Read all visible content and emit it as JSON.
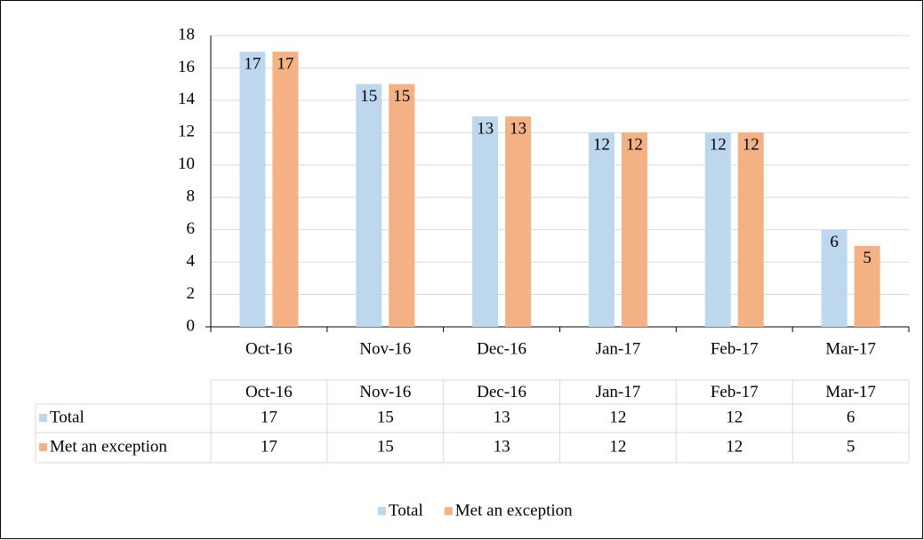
{
  "chart_data": {
    "type": "bar",
    "categories": [
      "Oct-16",
      "Nov-16",
      "Dec-16",
      "Jan-17",
      "Feb-17",
      "Mar-17"
    ],
    "series": [
      {
        "name": "Total",
        "color": "#bdd7ee",
        "values": [
          17,
          15,
          13,
          12,
          12,
          6
        ]
      },
      {
        "name": "Met an exception",
        "color": "#f4b183",
        "values": [
          17,
          15,
          13,
          12,
          12,
          5
        ]
      }
    ],
    "ylim": [
      0,
      18
    ],
    "yticks": [
      0,
      2,
      4,
      6,
      8,
      10,
      12,
      14,
      16,
      18
    ],
    "grid": true,
    "legend": "bottom"
  }
}
